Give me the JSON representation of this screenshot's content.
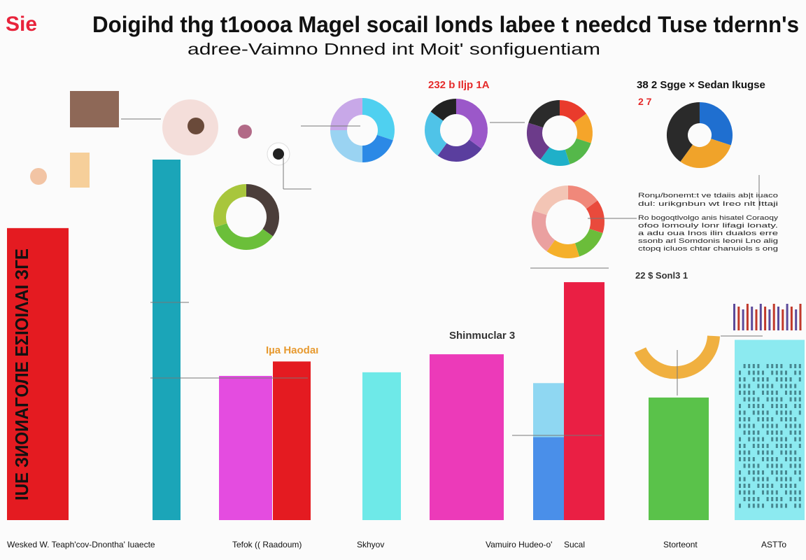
{
  "brand": "Sie",
  "title": "Doigihd thg t1oooa Magel socail londs labee t needcd Tuse tdernn's",
  "subtitle": "adree-Vaimno Dnned int Moit' sonfiguentiam",
  "colors": {
    "red": "#e41b21",
    "teal": "#1ba5b8",
    "magenta": "#e44ce0",
    "mint": "#6ee9e8",
    "pink": "#ec3ab9",
    "blue": "#4a8fe9",
    "lightblue": "#8fd7f2",
    "crimson": "#ea1f44",
    "green": "#5ac24a",
    "cyan": "#8ceaf0",
    "orange": "#f29a2a",
    "purple": "#8a55d6",
    "dark": "#4b3e3a"
  },
  "chart_data": {
    "type": "bar",
    "categories": [
      "Wesked W. Teaph'cov-Dnontha' Iuaecte",
      "Tefok (( Raadoum)",
      "Skhyov",
      "Vamuiro Hudeo-o'",
      "Sucal",
      "Storteont",
      "ASTTo"
    ],
    "ylim": [
      0,
      100
    ],
    "bars": [
      {
        "category": 0,
        "value": 81,
        "color": "red"
      },
      {
        "category": 0,
        "value": 100,
        "color": "teal"
      },
      {
        "category": 1,
        "value": 40,
        "color": "magenta"
      },
      {
        "category": 1,
        "value": 44,
        "color": "red"
      },
      {
        "category": 2,
        "value": 41,
        "color": "mint"
      },
      {
        "category": 3,
        "value": 46,
        "color": "pink"
      },
      {
        "category": 4,
        "value": 38,
        "color": "lightblue",
        "stack_base": 23
      },
      {
        "category": 4,
        "value": 66,
        "color": "crimson"
      },
      {
        "category": 5,
        "value": 34,
        "color": "green"
      },
      {
        "category": 6,
        "value": 50,
        "color": "cyan"
      }
    ],
    "rotated_label": "IUE ЗИОИАΓОЛЕ ЕΣΙΟΙΛΑΙ ЗГЕ",
    "annotations": [
      {
        "text": "232 b Iljp 1A",
        "color": "#e52a2a"
      },
      {
        "text": "38 2 Sgge × Sedan Ikugse",
        "color": "#111"
      },
      {
        "text": "2 7",
        "color": "#e52a2a"
      },
      {
        "text": "Iµa Haodaı",
        "color": "#e79a30"
      },
      {
        "text": "Shinmuclar 3",
        "color": "#333"
      },
      {
        "text": "22  $  Sonl3 1",
        "color": "#333"
      }
    ],
    "notes": [
      "Ronμ/bonemt:t ve tdaiis ab|t iuaco",
      "dul: urikgnbun wt Ireo nlt Ittaji",
      "Ro bogoqtlvolgo anis hisatel Coraoqy",
      "ofoo lomouly lonr lifagi lonaty.",
      "a adu oua Inos ilin dualos erre",
      "ssonb arl Somdonis Ieoni Lno alig",
      "ctopq icluos chtar chanuiols s ong"
    ],
    "donuts": [
      {
        "values": [
          30,
          20,
          25,
          25
        ],
        "colors": [
          "#4fd0f0",
          "#2b89e6",
          "#9ad3f2",
          "#c8a8e8"
        ]
      },
      {
        "values": [
          35,
          25,
          25,
          15
        ],
        "colors": [
          "#9b58c9",
          "#5a3e9e",
          "#4fc3e8",
          "#222"
        ]
      },
      {
        "values": [
          15,
          15,
          15,
          15,
          20,
          20
        ],
        "colors": [
          "#e93b2c",
          "#f5a52a",
          "#55b84a",
          "#1fb0c9",
          "#6c3b8a",
          "#2b2b2b"
        ]
      },
      {
        "values": [
          30,
          30,
          40
        ],
        "colors": [
          "#1f6fd0",
          "#f0a32a",
          "#2a2a2a"
        ]
      },
      {
        "values": [
          35,
          35,
          30
        ],
        "colors": [
          "#4b3e3a",
          "#6bbf3a",
          "#a8c63c"
        ]
      },
      {
        "values": [
          15,
          15,
          15,
          15,
          20,
          20
        ],
        "colors": [
          "#f0887a",
          "#e94a3c",
          "#6bbd3a",
          "#f5b02a",
          "#eaa0a0",
          "#f3c5b5"
        ]
      }
    ]
  },
  "bottom_labels": [
    "Wesked W. Teaph'cov-Dnontha' Iuaecte",
    "Tefok (( Raadoum)",
    "Skhyov",
    "Vamuiro Hudeo-o'",
    "Sucal",
    "Storteont",
    "ASTTo"
  ]
}
